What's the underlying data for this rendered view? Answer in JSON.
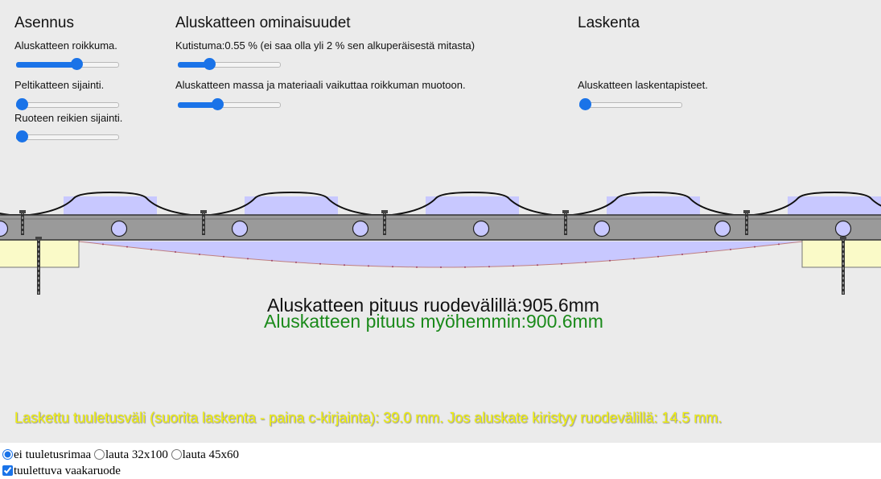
{
  "sections": {
    "asennus": {
      "title": "Asennus",
      "sliders": [
        {
          "label": "Aluskatteen roikkuma.",
          "value": 0.6
        },
        {
          "label": "Peltikatteen sijainti.",
          "value": 0.0
        },
        {
          "label": "Ruoteen reikien sijainti.",
          "value": 0.0
        }
      ]
    },
    "ominaisuudet": {
      "title": "Aluskatteen ominaisuudet",
      "sliders": [
        {
          "label": "Kutistuma:0.55 % (ei saa olla yli 2 % sen alkuperäisestä mitasta)",
          "value": 0.28
        },
        {
          "label": "Aluskatteen massa ja materiaali vaikuttaa roikkuman muotoon.",
          "value": 0.37
        }
      ]
    },
    "laskenta": {
      "title": "Laskenta",
      "sliders": [
        {
          "label": "Aluskatteen laskentapisteet.",
          "value": 0.0
        }
      ]
    }
  },
  "result": {
    "length_now": "Aluskatteen pituus ruodevälillä:905.6mm",
    "length_later": "Aluskatteen pituus myöhemmin:900.6mm",
    "ventilation": "Laskettu tuuletusväli (suorita laskenta - paina c-kirjainta): 39.0 mm. Jos aluskate kiristyy ruodevälillä: 14.5 mm."
  },
  "options": {
    "radios": [
      {
        "label": "ei tuuletusrimaa",
        "checked": true
      },
      {
        "label": "lauta 32x100",
        "checked": false
      },
      {
        "label": "lauta 45x60",
        "checked": false
      }
    ],
    "checkbox": {
      "label": "tuulettuva vaakaruode",
      "checked": true
    }
  },
  "colors": {
    "accent": "#1a73e8",
    "background": "#ebebeb",
    "membrane": "#c8c8ff",
    "batten": "#9a9a9a",
    "board": "#fafac8",
    "length_now_text": "#111111",
    "length_later_text": "#1a8a1a",
    "info_text": "#f4f40a"
  }
}
